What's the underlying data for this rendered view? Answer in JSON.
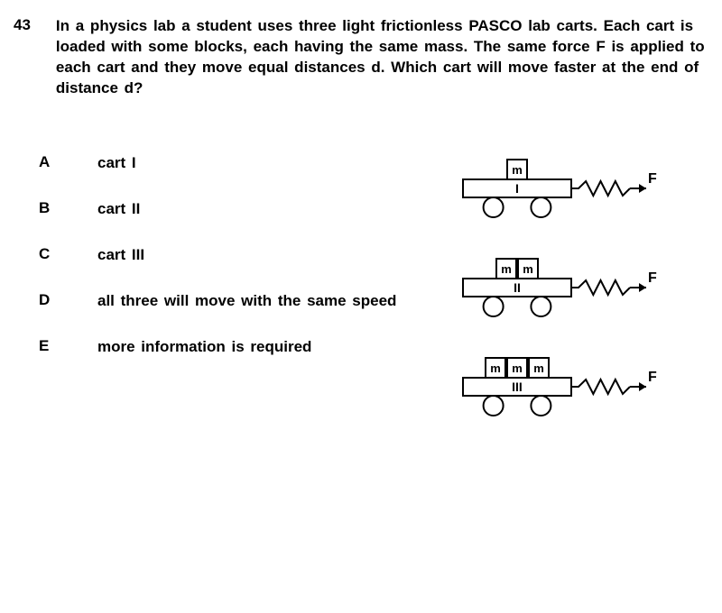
{
  "questionNumber": "43",
  "questionText": "In a physics lab a student uses three light  frictionless PASCO lab carts. Each cart is loaded  with some blocks,  each having  the same mass.    The same force F is applied to each cart and they move   equal  distances  d. Which cart will move faster at   the end  of  distance  d?",
  "options": [
    {
      "letter": "A",
      "text": "cart I"
    },
    {
      "letter": "B",
      "text": "cart II"
    },
    {
      "letter": "C",
      "text": "cart III"
    },
    {
      "letter": "D",
      "text": "all three will move   with the  same speed"
    },
    {
      "letter": "E",
      "text": "more information is required"
    }
  ],
  "carts": [
    {
      "label": "I",
      "blocks": 1
    },
    {
      "label": "II",
      "blocks": 2
    },
    {
      "label": "III",
      "blocks": 3
    }
  ],
  "blockLabel": "m",
  "forceLabel": "F",
  "colors": {
    "stroke": "#000000",
    "background": "#ffffff"
  },
  "style": {
    "strokeWidth": 2,
    "wheelRadius": 11,
    "cartWidth": 120,
    "cartHeight": 20,
    "blockSize": 22
  }
}
